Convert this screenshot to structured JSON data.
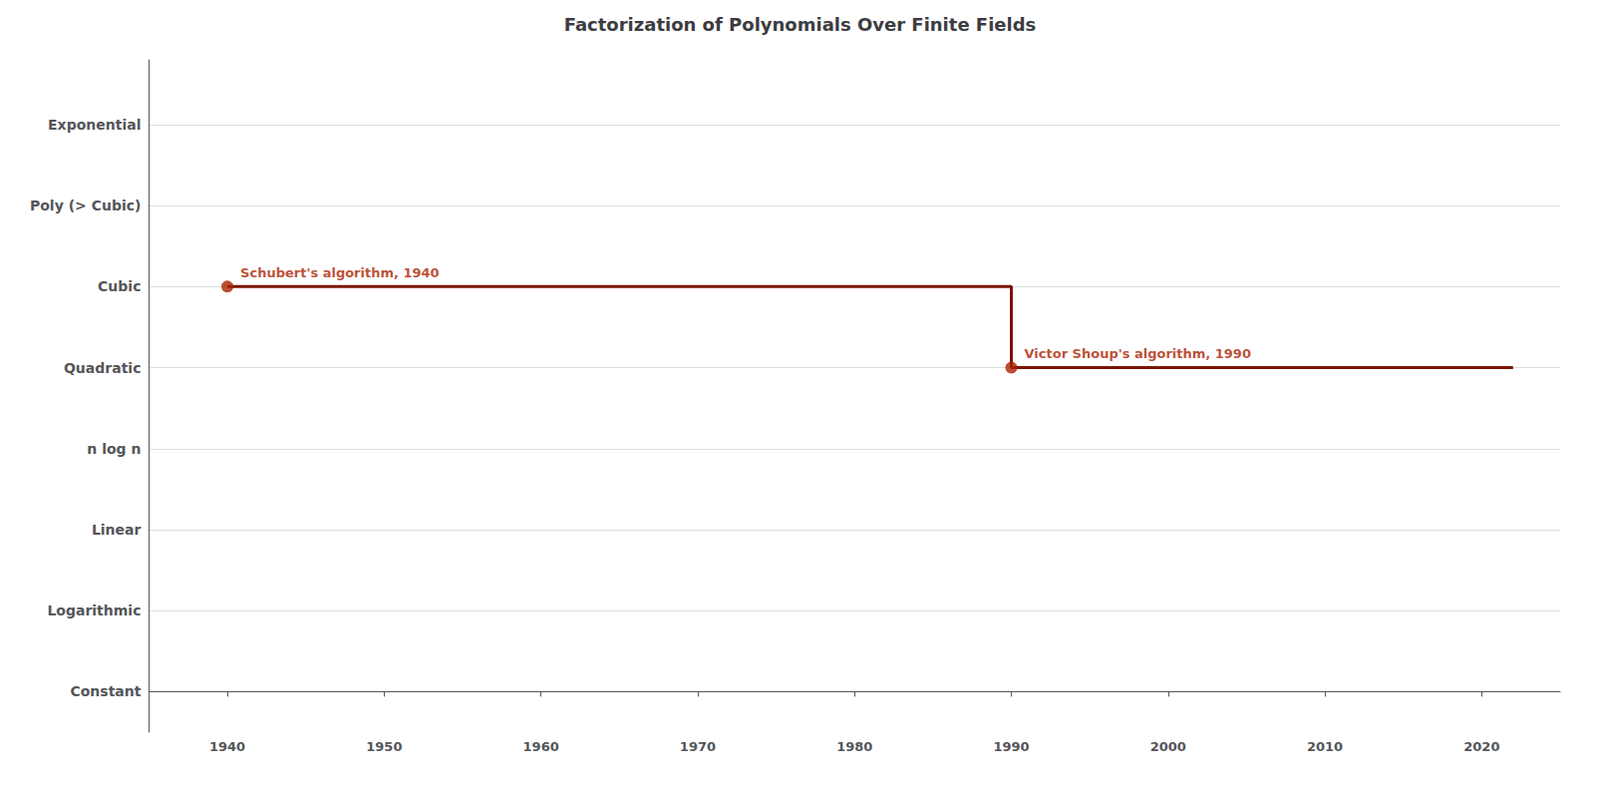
{
  "chart_data": {
    "type": "line",
    "title": "Factorization of Polynomials Over Finite Fields",
    "x": [
      1940,
      1990,
      1990,
      2022
    ],
    "values": [
      5,
      5,
      4,
      4
    ],
    "color": "#7B1500",
    "xlim": [
      1935,
      2025
    ],
    "xticks": [
      1940,
      1950,
      1960,
      1970,
      1980,
      1990,
      2000,
      2010,
      2020
    ],
    "ylim": [
      -0.5,
      7.8
    ],
    "yticks": [
      {
        "value": 0,
        "label": "Constant"
      },
      {
        "value": 1,
        "label": "Logarithmic"
      },
      {
        "value": 2,
        "label": "Linear"
      },
      {
        "value": 3,
        "label": "n log n"
      },
      {
        "value": 4,
        "label": "Quadratic"
      },
      {
        "value": 5,
        "label": "Cubic"
      },
      {
        "value": 6,
        "label": "Poly (> Cubic)"
      },
      {
        "value": 7,
        "label": "Exponential"
      }
    ],
    "grid": true,
    "annotations": [
      {
        "x": 1940,
        "y": 5,
        "text": "Schubert's algorithm, 1940",
        "color": "#AA2200"
      },
      {
        "x": 1990,
        "y": 4,
        "text": "Victor Shoup's algorithm, 1990",
        "color": "#AA2200"
      }
    ]
  }
}
